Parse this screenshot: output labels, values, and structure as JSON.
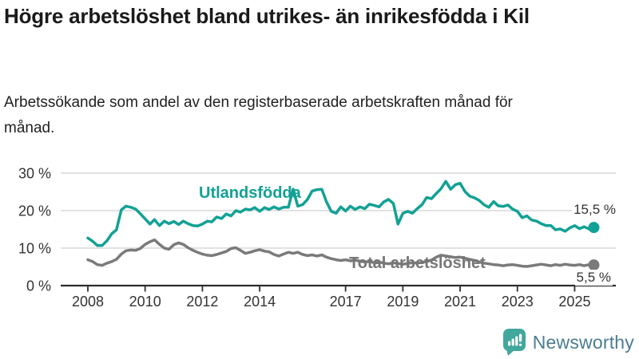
{
  "header": {
    "title": "Högre arbetslöshet bland utrikes- än inrikesfödda i Kil",
    "subtitle": "Arbetssökande som andel av den registerbaserade arbetskraften månad för månad."
  },
  "chart_data": {
    "type": "line",
    "title": "Högre arbetslöshet bland utrikes- än inrikesfödda i Kil",
    "subtitle": "Arbetssökande som andel av den registerbaserade arbetskraften månad för månad.",
    "unit": "%",
    "xlabel": "",
    "ylabel": "",
    "xlim": [
      2008,
      2026
    ],
    "ylim": [
      0,
      30
    ],
    "grid": "horizontal",
    "legend_position": "inline-labels",
    "y_ticks": [
      {
        "value": 0,
        "label": "0 %"
      },
      {
        "value": 10,
        "label": "10 %"
      },
      {
        "value": 20,
        "label": "20 %"
      },
      {
        "value": 30,
        "label": "30 %"
      }
    ],
    "x_ticks": [
      {
        "value": 2008,
        "label": "2008"
      },
      {
        "value": 2010,
        "label": "2010"
      },
      {
        "value": 2012,
        "label": "2012"
      },
      {
        "value": 2014,
        "label": "2014"
      },
      {
        "value": 2017,
        "label": "2017"
      },
      {
        "value": 2019,
        "label": "2019"
      },
      {
        "value": 2021,
        "label": "2021"
      },
      {
        "value": 2023,
        "label": "2023"
      },
      {
        "value": 2025,
        "label": "2025"
      }
    ],
    "series": [
      {
        "name": "Utlandsfödda",
        "color": "#12a195",
        "last_value_label": "15,5 %",
        "last_value": 15.5,
        "points": [
          [
            2008,
            12.7
          ],
          [
            2008.17,
            11.8
          ],
          [
            2008.33,
            10.7
          ],
          [
            2008.5,
            10.7
          ],
          [
            2008.67,
            12.0
          ],
          [
            2008.83,
            13.8
          ],
          [
            2009,
            14.9
          ],
          [
            2009.17,
            20.2
          ],
          [
            2009.33,
            21.2
          ],
          [
            2009.5,
            20.9
          ],
          [
            2009.67,
            20.4
          ],
          [
            2009.83,
            19.2
          ],
          [
            2010,
            17.8
          ],
          [
            2010.17,
            16.4
          ],
          [
            2010.33,
            17.6
          ],
          [
            2010.5,
            16.0
          ],
          [
            2010.67,
            17.2
          ],
          [
            2010.83,
            16.5
          ],
          [
            2011,
            17.1
          ],
          [
            2011.17,
            16.3
          ],
          [
            2011.33,
            17.2
          ],
          [
            2011.5,
            16.5
          ],
          [
            2011.67,
            16.0
          ],
          [
            2011.83,
            15.9
          ],
          [
            2012,
            16.4
          ],
          [
            2012.17,
            17.2
          ],
          [
            2012.33,
            17.0
          ],
          [
            2012.5,
            18.3
          ],
          [
            2012.67,
            17.9
          ],
          [
            2012.83,
            19.1
          ],
          [
            2013,
            18.6
          ],
          [
            2013.17,
            20.0
          ],
          [
            2013.33,
            19.6
          ],
          [
            2013.5,
            20.4
          ],
          [
            2013.67,
            20.2
          ],
          [
            2013.83,
            20.8
          ],
          [
            2014,
            19.8
          ],
          [
            2014.17,
            20.8
          ],
          [
            2014.33,
            20.3
          ],
          [
            2014.5,
            21.0
          ],
          [
            2014.67,
            20.4
          ],
          [
            2014.83,
            20.9
          ],
          [
            2015,
            20.9
          ],
          [
            2015.17,
            25.7
          ],
          [
            2015.33,
            21.2
          ],
          [
            2015.5,
            21.6
          ],
          [
            2015.67,
            23.0
          ],
          [
            2015.83,
            25.2
          ],
          [
            2016,
            25.6
          ],
          [
            2016.17,
            25.7
          ],
          [
            2016.33,
            22.4
          ],
          [
            2016.5,
            19.8
          ],
          [
            2016.67,
            19.3
          ],
          [
            2016.83,
            21.0
          ],
          [
            2017,
            19.9
          ],
          [
            2017.17,
            21.2
          ],
          [
            2017.33,
            20.3
          ],
          [
            2017.5,
            21.0
          ],
          [
            2017.67,
            20.5
          ],
          [
            2017.83,
            21.7
          ],
          [
            2018,
            21.4
          ],
          [
            2018.17,
            21.0
          ],
          [
            2018.33,
            22.3
          ],
          [
            2018.5,
            23.0
          ],
          [
            2018.67,
            21.9
          ],
          [
            2018.83,
            16.4
          ],
          [
            2019,
            19.3
          ],
          [
            2019.17,
            19.8
          ],
          [
            2019.33,
            19.3
          ],
          [
            2019.5,
            20.5
          ],
          [
            2019.67,
            21.6
          ],
          [
            2019.83,
            23.5
          ],
          [
            2020,
            23.2
          ],
          [
            2020.17,
            24.6
          ],
          [
            2020.33,
            25.8
          ],
          [
            2020.5,
            27.8
          ],
          [
            2020.67,
            25.7
          ],
          [
            2020.83,
            26.9
          ],
          [
            2021,
            27.3
          ],
          [
            2021.17,
            25.1
          ],
          [
            2021.33,
            23.9
          ],
          [
            2021.5,
            23.4
          ],
          [
            2021.67,
            22.7
          ],
          [
            2021.83,
            21.6
          ],
          [
            2022,
            20.9
          ],
          [
            2022.17,
            22.4
          ],
          [
            2022.33,
            21.3
          ],
          [
            2022.5,
            21.1
          ],
          [
            2022.67,
            21.5
          ],
          [
            2022.83,
            20.4
          ],
          [
            2023,
            19.8
          ],
          [
            2023.17,
            18.1
          ],
          [
            2023.33,
            18.6
          ],
          [
            2023.5,
            17.5
          ],
          [
            2023.67,
            17.2
          ],
          [
            2023.83,
            16.5
          ],
          [
            2024,
            16.0
          ],
          [
            2024.17,
            16.0
          ],
          [
            2024.33,
            14.9
          ],
          [
            2024.5,
            15.1
          ],
          [
            2024.67,
            14.5
          ],
          [
            2024.83,
            15.4
          ],
          [
            2025,
            16.0
          ],
          [
            2025.17,
            15.2
          ],
          [
            2025.33,
            15.7
          ],
          [
            2025.5,
            15.1
          ],
          [
            2025.67,
            15.5
          ]
        ]
      },
      {
        "name": "Total arbetslöshet",
        "color": "#7a7a7a",
        "last_value_label": "5,5 %",
        "last_value": 5.5,
        "points": [
          [
            2008,
            6.9
          ],
          [
            2008.17,
            6.4
          ],
          [
            2008.33,
            5.6
          ],
          [
            2008.5,
            5.4
          ],
          [
            2008.67,
            6.0
          ],
          [
            2008.83,
            6.4
          ],
          [
            2009,
            7.0
          ],
          [
            2009.17,
            8.4
          ],
          [
            2009.33,
            9.3
          ],
          [
            2009.5,
            9.5
          ],
          [
            2009.67,
            9.4
          ],
          [
            2009.83,
            9.9
          ],
          [
            2010,
            11.0
          ],
          [
            2010.17,
            11.7
          ],
          [
            2010.33,
            12.2
          ],
          [
            2010.5,
            11.0
          ],
          [
            2010.67,
            10.0
          ],
          [
            2010.83,
            9.7
          ],
          [
            2011,
            10.9
          ],
          [
            2011.17,
            11.4
          ],
          [
            2011.33,
            11.0
          ],
          [
            2011.5,
            10.1
          ],
          [
            2011.67,
            9.4
          ],
          [
            2011.83,
            8.9
          ],
          [
            2012,
            8.4
          ],
          [
            2012.17,
            8.1
          ],
          [
            2012.33,
            8.0
          ],
          [
            2012.5,
            8.3
          ],
          [
            2012.67,
            8.7
          ],
          [
            2012.83,
            9.1
          ],
          [
            2013,
            9.9
          ],
          [
            2013.17,
            10.1
          ],
          [
            2013.33,
            9.4
          ],
          [
            2013.5,
            8.6
          ],
          [
            2013.67,
            8.9
          ],
          [
            2013.83,
            9.3
          ],
          [
            2014,
            9.6
          ],
          [
            2014.17,
            9.2
          ],
          [
            2014.33,
            9.0
          ],
          [
            2014.5,
            8.3
          ],
          [
            2014.67,
            7.9
          ],
          [
            2014.83,
            8.4
          ],
          [
            2015,
            8.9
          ],
          [
            2015.17,
            8.6
          ],
          [
            2015.33,
            8.9
          ],
          [
            2015.5,
            8.3
          ],
          [
            2015.67,
            8.0
          ],
          [
            2015.83,
            8.2
          ],
          [
            2016,
            7.9
          ],
          [
            2016.17,
            8.2
          ],
          [
            2016.33,
            7.6
          ],
          [
            2016.5,
            7.2
          ],
          [
            2016.67,
            6.9
          ],
          [
            2016.83,
            6.7
          ],
          [
            2017,
            6.9
          ],
          [
            2017.17,
            6.6
          ],
          [
            2017.33,
            6.8
          ],
          [
            2017.5,
            6.5
          ],
          [
            2017.67,
            6.3
          ],
          [
            2017.83,
            6.4
          ],
          [
            2018,
            6.1
          ],
          [
            2018.17,
            6.3
          ],
          [
            2018.33,
            6.0
          ],
          [
            2018.5,
            5.8
          ],
          [
            2018.67,
            6.1
          ],
          [
            2018.83,
            5.9
          ],
          [
            2019,
            5.7
          ],
          [
            2019.17,
            5.9
          ],
          [
            2019.33,
            6.1
          ],
          [
            2019.5,
            6.0
          ],
          [
            2019.67,
            6.2
          ],
          [
            2019.83,
            6.4
          ],
          [
            2020,
            6.8
          ],
          [
            2020.17,
            7.6
          ],
          [
            2020.33,
            8.1
          ],
          [
            2020.5,
            7.9
          ],
          [
            2020.67,
            7.7
          ],
          [
            2020.83,
            7.5
          ],
          [
            2021,
            7.6
          ],
          [
            2021.17,
            7.3
          ],
          [
            2021.33,
            7.0
          ],
          [
            2021.5,
            6.7
          ],
          [
            2021.67,
            6.3
          ],
          [
            2021.83,
            6.0
          ],
          [
            2022,
            5.8
          ],
          [
            2022.17,
            5.6
          ],
          [
            2022.33,
            5.5
          ],
          [
            2022.5,
            5.3
          ],
          [
            2022.67,
            5.5
          ],
          [
            2022.83,
            5.6
          ],
          [
            2023,
            5.4
          ],
          [
            2023.17,
            5.2
          ],
          [
            2023.33,
            5.1
          ],
          [
            2023.5,
            5.3
          ],
          [
            2023.67,
            5.5
          ],
          [
            2023.83,
            5.7
          ],
          [
            2024,
            5.5
          ],
          [
            2024.17,
            5.3
          ],
          [
            2024.33,
            5.6
          ],
          [
            2024.5,
            5.4
          ],
          [
            2024.67,
            5.7
          ],
          [
            2024.83,
            5.5
          ],
          [
            2025,
            5.4
          ],
          [
            2025.17,
            5.6
          ],
          [
            2025.33,
            5.3
          ],
          [
            2025.5,
            5.6
          ],
          [
            2025.67,
            5.5
          ]
        ]
      }
    ]
  },
  "footer": {
    "brand": "Newsworthy",
    "logo_color": "#42a79c",
    "brand_text_color": "#4a7c91"
  },
  "colors": {
    "accent_teal": "#12a195",
    "series_gray": "#7a7a7a",
    "axis": "#2d2d2d",
    "gridline": "#d9d9d9"
  }
}
